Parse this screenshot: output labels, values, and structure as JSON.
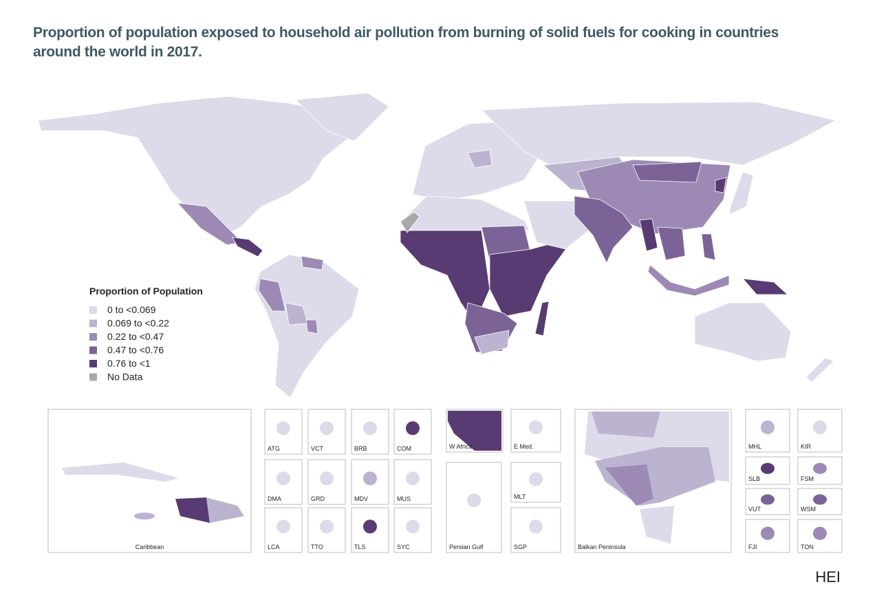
{
  "title": "Proportion of population exposed to household air pollution from burning of solid fuels for cooking in countries around the world in 2017.",
  "legend": {
    "title": "Proportion of Population",
    "items": [
      {
        "label": "0 to <0.069",
        "color": "#dddbe9"
      },
      {
        "label": "0.069 to <0.22",
        "color": "#bcb3d0"
      },
      {
        "label": "0.22 to <0.47",
        "color": "#9c8ab4"
      },
      {
        "label": "0.47 to <0.76",
        "color": "#7b6397"
      },
      {
        "label": "0.76 to <1",
        "color": "#583b72"
      },
      {
        "label": "No Data",
        "color": "#a9a9a9"
      }
    ]
  },
  "insets": [
    "Caribbean",
    "ATG",
    "VCT",
    "BRB",
    "COM",
    "DMA",
    "GRD",
    "MDV",
    "MUS",
    "LCA",
    "TTO",
    "TLS",
    "SYC",
    "W Africa",
    "E Med.",
    "Persian Gulf",
    "MLT",
    "SGP",
    "Balkan Peninsula",
    "MHL",
    "KIR",
    "SLB",
    "FSM",
    "VUT",
    "WSM",
    "FJI",
    "TON"
  ],
  "credit": "HEI"
}
